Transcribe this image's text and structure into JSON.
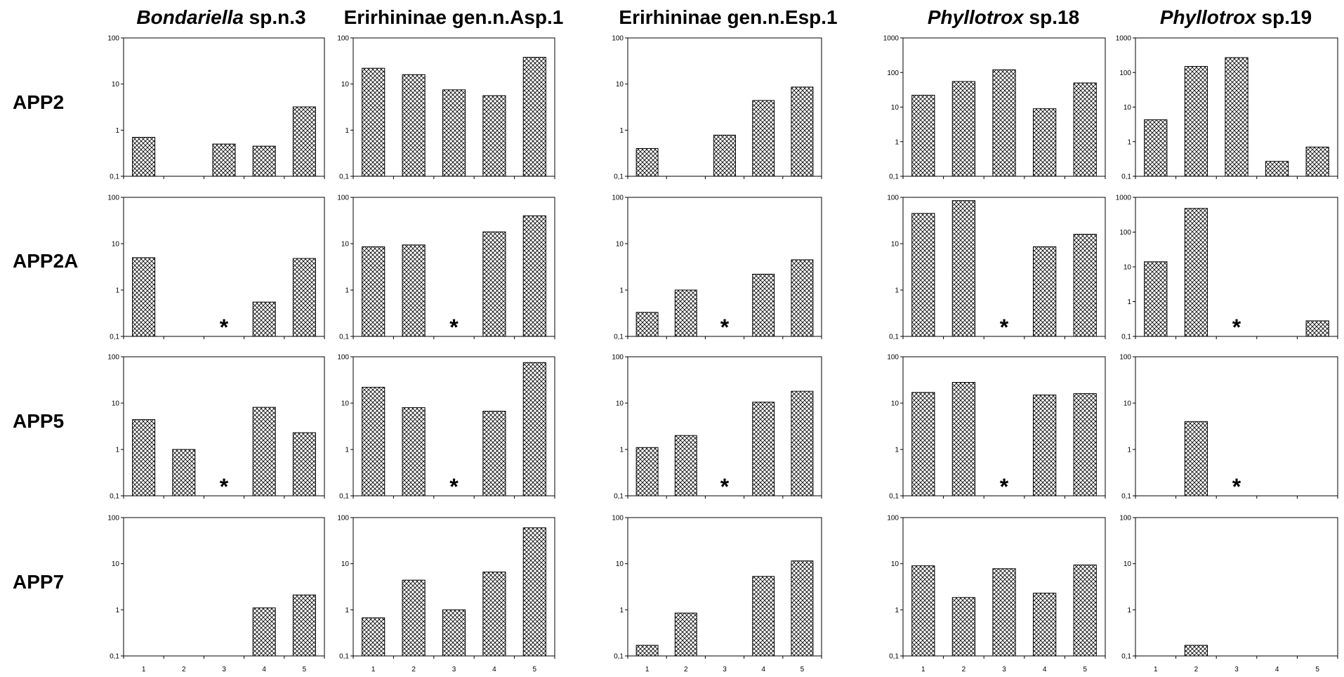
{
  "colors": {
    "bar_stroke": "#000000",
    "hatch": "#000000",
    "background": "#ffffff"
  },
  "chart_data": {
    "type": "bar",
    "scale": "log",
    "categories": [
      "1",
      "2",
      "3",
      "4",
      "5"
    ],
    "column_titles": [
      {
        "italic": "Bondariella",
        "normal": " sp.n.3"
      },
      {
        "italic": "",
        "normal": "Erirhininae gen.n.Asp.1"
      },
      {
        "italic": "",
        "normal": "Erirhininae gen.n.Esp.1"
      },
      {
        "italic": "Phyllotrox",
        "normal": " sp.18"
      },
      {
        "italic": "Phyllotrox",
        "normal": " sp.19"
      }
    ],
    "row_labels": [
      "APP2",
      "APP2A",
      "APP5",
      "APP7"
    ],
    "panels": [
      [
        {
          "ylim": [
            0.1,
            100
          ],
          "yticks": [
            "0,1",
            "1",
            "10",
            "100"
          ],
          "values": [
            0.7,
            null,
            0.5,
            0.45,
            3.2
          ],
          "asterisk": null
        },
        {
          "ylim": [
            0.1,
            100
          ],
          "yticks": [
            "0,1",
            "1",
            "10",
            "100"
          ],
          "values": [
            22,
            16,
            7.5,
            5.6,
            38
          ],
          "asterisk": null
        },
        {
          "ylim": [
            0.1,
            100
          ],
          "yticks": [
            "0,1",
            "1",
            "10",
            "100"
          ],
          "values": [
            0.4,
            null,
            0.78,
            4.4,
            8.6
          ],
          "asterisk": null
        },
        {
          "ylim": [
            0.1,
            1000
          ],
          "yticks": [
            "0,1",
            "1",
            "10",
            "100",
            "1000"
          ],
          "values": [
            22,
            55,
            120,
            9,
            50
          ],
          "asterisk": null
        },
        {
          "ylim": [
            0.1,
            1000
          ],
          "yticks": [
            "0,1",
            "1",
            "10",
            "100",
            "1000"
          ],
          "values": [
            4.3,
            150,
            270,
            0.27,
            0.7
          ],
          "asterisk": null
        }
      ],
      [
        {
          "ylim": [
            0.1,
            100
          ],
          "yticks": [
            "0,1",
            "1",
            "10",
            "100"
          ],
          "values": [
            5,
            null,
            null,
            0.55,
            4.8
          ],
          "asterisk": 3
        },
        {
          "ylim": [
            0.1,
            100
          ],
          "yticks": [
            "0,1",
            "1",
            "10",
            "100"
          ],
          "values": [
            8.6,
            9.4,
            null,
            18,
            40
          ],
          "asterisk": 3
        },
        {
          "ylim": [
            0.1,
            100
          ],
          "yticks": [
            "0,1",
            "1",
            "10",
            "100"
          ],
          "values": [
            0.33,
            1,
            null,
            2.2,
            4.5
          ],
          "asterisk": 3
        },
        {
          "ylim": [
            0.1,
            100
          ],
          "yticks": [
            "0,1",
            "1",
            "10",
            "100"
          ],
          "values": [
            45,
            85,
            null,
            8.6,
            16
          ],
          "asterisk": 3
        },
        {
          "ylim": [
            0.1,
            1000
          ],
          "yticks": [
            "0,1",
            "1",
            "10",
            "100",
            "1000"
          ],
          "values": [
            14,
            480,
            null,
            null,
            0.28
          ],
          "asterisk": 3
        }
      ],
      [
        {
          "ylim": [
            0.1,
            100
          ],
          "yticks": [
            "0,1",
            "1",
            "10",
            "100"
          ],
          "values": [
            4.4,
            1,
            null,
            8.1,
            2.3
          ],
          "asterisk": 3
        },
        {
          "ylim": [
            0.1,
            100
          ],
          "yticks": [
            "0,1",
            "1",
            "10",
            "100"
          ],
          "values": [
            22,
            8,
            null,
            6.7,
            75
          ],
          "asterisk": 3
        },
        {
          "ylim": [
            0.1,
            100
          ],
          "yticks": [
            "0,1",
            "1",
            "10",
            "100"
          ],
          "values": [
            1.1,
            2,
            null,
            10.5,
            18
          ],
          "asterisk": 3
        },
        {
          "ylim": [
            0.1,
            100
          ],
          "yticks": [
            "0,1",
            "1",
            "10",
            "100"
          ],
          "values": [
            17,
            28,
            null,
            15,
            16
          ],
          "asterisk": 3
        },
        {
          "ylim": [
            0.1,
            100
          ],
          "yticks": [
            "0,1",
            "1",
            "10",
            "100"
          ],
          "values": [
            null,
            4,
            null,
            null,
            null
          ],
          "asterisk": 3
        }
      ],
      [
        {
          "ylim": [
            0.1,
            100
          ],
          "yticks": [
            "0,1",
            "1",
            "10",
            "100"
          ],
          "values": [
            null,
            null,
            null,
            1.1,
            2.1
          ],
          "asterisk": null
        },
        {
          "ylim": [
            0.1,
            100
          ],
          "yticks": [
            "0,1",
            "1",
            "10",
            "100"
          ],
          "values": [
            0.67,
            4.4,
            1,
            6.6,
            60
          ],
          "asterisk": null
        },
        {
          "ylim": [
            0.1,
            100
          ],
          "yticks": [
            "0,1",
            "1",
            "10",
            "100"
          ],
          "values": [
            0.17,
            0.85,
            null,
            5.3,
            11.5
          ],
          "asterisk": null
        },
        {
          "ylim": [
            0.1,
            100
          ],
          "yticks": [
            "0,1",
            "1",
            "10",
            "100"
          ],
          "values": [
            9,
            1.85,
            7.8,
            2.3,
            9.4
          ],
          "asterisk": null
        },
        {
          "ylim": [
            0.1,
            100
          ],
          "yticks": [
            "0,1",
            "1",
            "10",
            "100"
          ],
          "values": [
            null,
            0.17,
            null,
            null,
            null
          ],
          "asterisk": null
        }
      ]
    ]
  }
}
